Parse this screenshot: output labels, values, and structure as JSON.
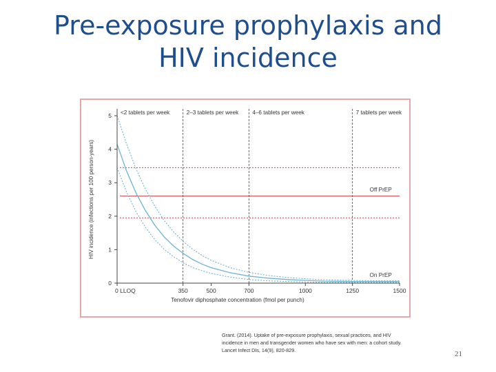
{
  "slide": {
    "title_line1": "Pre-exposure prophylaxis and",
    "title_line2": "HIV incidence",
    "citation_lines": [
      "Grant. (2014). Uptake of pre-exposure prophylaxis, sexual practices, and HIV",
      "incidence in men and transgender women who have sex with men: a cohort study.",
      "Lancet Infect DIs, 14(9), 820-829."
    ],
    "page_number": "21"
  },
  "colors": {
    "title": "#1f4e8c",
    "frame": "#e8a6a6",
    "curve": "#6db3cf",
    "reference": "#c8404a",
    "axis": "#444444"
  },
  "chart_data": {
    "type": "line",
    "title": "",
    "xlabel": "Tenofovir diphosphate concentration (fmol per punch)",
    "ylabel": "HIV incidence (infections per 100 person-years)",
    "xlim": [
      0,
      1500
    ],
    "ylim": [
      0,
      5
    ],
    "x_ticks": [
      0,
      350,
      500,
      700,
      1000,
      1250,
      1500
    ],
    "x_tick_labels": [
      "0 LLOQ",
      "350",
      "500",
      "700",
      "1000",
      "1250",
      "1500"
    ],
    "y_ticks": [
      0,
      1,
      2,
      3,
      4,
      5
    ],
    "y_tick_labels": [
      "0",
      "1",
      "2",
      "3",
      "4",
      "5"
    ],
    "zones": [
      {
        "label": "<2 tablets per week",
        "from": 0,
        "to": 350
      },
      {
        "label": "2–3 tablets per week",
        "from": 350,
        "to": 700
      },
      {
        "label": "4–6 tablets per week",
        "from": 700,
        "to": 1250
      },
      {
        "label": "7 tablets per week",
        "from": 1250,
        "to": 1500
      }
    ],
    "reference_lines": [
      {
        "name": "Off PrEP",
        "value": 2.6,
        "style": "solid"
      },
      {
        "name": "Off PrEP upper 95% CI",
        "value": 3.45,
        "style": "dashed"
      },
      {
        "name": "Off PrEP lower 95% CI",
        "value": 1.95,
        "style": "dashed"
      }
    ],
    "annotations": [
      {
        "text": "Off PrEP",
        "x": 1400,
        "y": 2.8
      },
      {
        "text": "On PrEP",
        "x": 1400,
        "y": 0.25
      }
    ],
    "series": [
      {
        "name": "On PrEP estimate",
        "style": "solid",
        "x": [
          0,
          50,
          100,
          150,
          200,
          250,
          300,
          350,
          400,
          450,
          500,
          600,
          700,
          800,
          900,
          1000,
          1100,
          1250,
          1400,
          1500
        ],
        "y": [
          4.15,
          3.35,
          2.7,
          2.17,
          1.73,
          1.38,
          1.11,
          0.89,
          0.71,
          0.57,
          0.46,
          0.31,
          0.21,
          0.15,
          0.11,
          0.08,
          0.06,
          0.05,
          0.05,
          0.05
        ]
      },
      {
        "name": "Upper 95% CI",
        "style": "dashed",
        "x": [
          0,
          50,
          100,
          150,
          200,
          250,
          300,
          350,
          400,
          450,
          500,
          600,
          700,
          800,
          900,
          1000,
          1100,
          1250,
          1400,
          1500
        ],
        "y": [
          5.0,
          4.16,
          3.42,
          2.81,
          2.3,
          1.87,
          1.53,
          1.25,
          1.02,
          0.83,
          0.68,
          0.46,
          0.32,
          0.23,
          0.17,
          0.13,
          0.1,
          0.08,
          0.07,
          0.07
        ]
      },
      {
        "name": "Lower 95% CI",
        "style": "dashed",
        "x": [
          0,
          50,
          100,
          150,
          200,
          250,
          300,
          350,
          400,
          450,
          500,
          600,
          700,
          800,
          900,
          1000,
          1100,
          1250,
          1400,
          1500
        ],
        "y": [
          3.45,
          2.72,
          2.14,
          1.67,
          1.3,
          1.01,
          0.79,
          0.61,
          0.47,
          0.37,
          0.29,
          0.18,
          0.11,
          0.07,
          0.05,
          0.03,
          0.02,
          0.02,
          0.02,
          0.02
        ]
      }
    ]
  }
}
